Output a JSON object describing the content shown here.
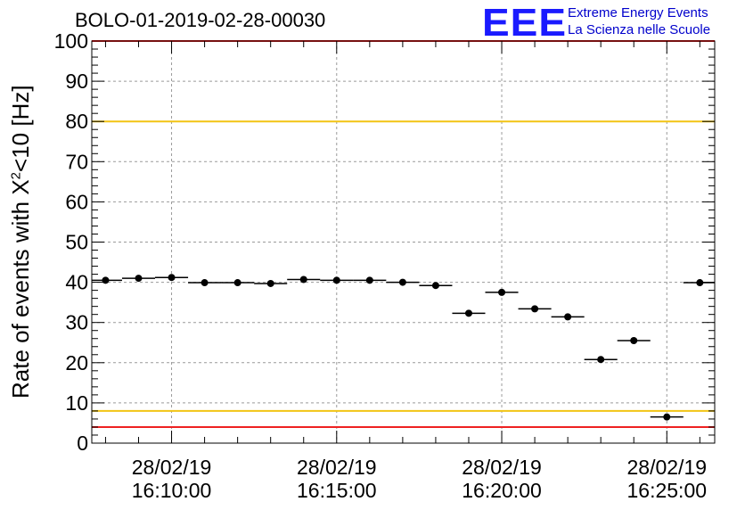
{
  "title": "BOLO-01-2019-02-28-00030",
  "logo": {
    "mark": "EEE",
    "line1": "Extreme Energy Events",
    "line2": "La Scienza nelle Scuole"
  },
  "chart_data": {
    "type": "scatter",
    "title": "BOLO-01-2019-02-28-00030",
    "ylabel_prefix": "Rate of events with X",
    "ylabel_sup": "2",
    "ylabel_suffix": "<10 [Hz]",
    "xlabel": "",
    "ylim": [
      0,
      100
    ],
    "yticks": [
      0,
      10,
      20,
      30,
      40,
      50,
      60,
      70,
      80,
      90,
      100
    ],
    "xlim": [
      "2019-02-28 16:07:35",
      "2019-02-28 16:26:27"
    ],
    "xticks": [
      {
        "date": "28/02/19",
        "time": "16:10:00"
      },
      {
        "date": "28/02/19",
        "time": "16:15:00"
      },
      {
        "date": "28/02/19",
        "time": "16:20:00"
      },
      {
        "date": "28/02/19",
        "time": "16:25:00"
      }
    ],
    "grid": true,
    "bin_width_s": 60,
    "series": [
      {
        "points": [
          {
            "t": "16:08:00",
            "y": 40.5
          },
          {
            "t": "16:09:00",
            "y": 41.0
          },
          {
            "t": "16:10:00",
            "y": 41.2
          },
          {
            "t": "16:11:00",
            "y": 39.9
          },
          {
            "t": "16:12:00",
            "y": 39.9
          },
          {
            "t": "16:13:00",
            "y": 39.7
          },
          {
            "t": "16:14:00",
            "y": 40.7
          },
          {
            "t": "16:15:00",
            "y": 40.5
          },
          {
            "t": "16:16:00",
            "y": 40.5
          },
          {
            "t": "16:17:00",
            "y": 40.0
          },
          {
            "t": "16:18:00",
            "y": 39.2
          },
          {
            "t": "16:19:00",
            "y": 32.3
          },
          {
            "t": "16:20:00",
            "y": 37.5
          },
          {
            "t": "16:21:00",
            "y": 33.4
          },
          {
            "t": "16:22:00",
            "y": 31.4
          },
          {
            "t": "16:23:00",
            "y": 20.8
          },
          {
            "t": "16:24:00",
            "y": 25.5
          },
          {
            "t": "16:25:00",
            "y": 6.5
          },
          {
            "t": "16:26:00",
            "y": 39.9
          }
        ]
      }
    ],
    "reference_lines": [
      {
        "y": 80,
        "color": "#f2c414"
      },
      {
        "y": 8,
        "color": "#f2c414"
      },
      {
        "y": 4,
        "color": "#ee2222"
      }
    ],
    "colors": {
      "marker": "#000000",
      "grid": "#9a9a9a",
      "top_red": "#ee2222"
    }
  }
}
